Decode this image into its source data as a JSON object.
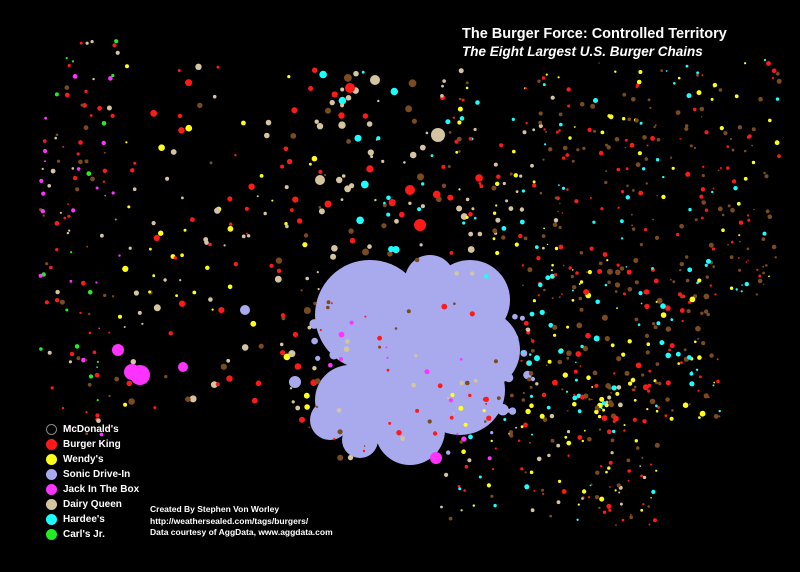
{
  "title": "The Burger Force:  Controlled Territory",
  "subtitle": "The Eight Largest U.S. Burger Chains",
  "legend": [
    {
      "label": "McDonald's",
      "color": "#000000"
    },
    {
      "label": "Burger King",
      "color": "#ff1a1a"
    },
    {
      "label": "Wendy's",
      "color": "#ffff1a"
    },
    {
      "label": "Sonic Drive-In",
      "color": "#a9aaee"
    },
    {
      "label": "Jack In The Box",
      "color": "#ff33ff"
    },
    {
      "label": "Dairy Queen",
      "color": "#d4c4a0"
    },
    {
      "label": "Hardee's",
      "color": "#1affff"
    },
    {
      "label": "Carl's Jr.",
      "color": "#22ee22"
    }
  ],
  "credits": {
    "author": "Created By Stephen Von Worley",
    "url": "http://weathersealed.com/tags/burgers/",
    "source": "Data courtesy of AggData, www.aggdata.com"
  }
}
